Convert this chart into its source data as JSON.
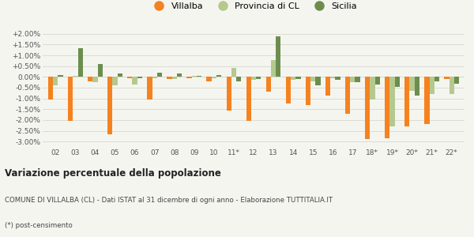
{
  "categories": [
    "02",
    "03",
    "04",
    "05",
    "06",
    "07",
    "08",
    "09",
    "10",
    "11*",
    "12",
    "13",
    "14",
    "15",
    "16",
    "17",
    "18*",
    "19*",
    "20*",
    "21*",
    "22*"
  ],
  "villalba": [
    -1.05,
    -2.05,
    -0.2,
    -2.65,
    -0.05,
    -1.05,
    -0.1,
    -0.05,
    -0.2,
    -1.55,
    -2.05,
    -0.7,
    -1.25,
    -1.3,
    -0.85,
    -1.7,
    -2.9,
    -2.85,
    -2.3,
    -2.2,
    -0.1
  ],
  "provincia_cl": [
    -0.4,
    0.05,
    -0.25,
    -0.4,
    -0.35,
    -0.05,
    -0.1,
    0.05,
    -0.05,
    0.4,
    -0.15,
    0.8,
    -0.15,
    -0.2,
    -0.05,
    -0.25,
    -1.05,
    -2.3,
    -0.65,
    -0.8,
    -0.8
  ],
  "sicilia": [
    0.1,
    1.35,
    0.6,
    0.15,
    -0.05,
    0.2,
    0.15,
    0.05,
    0.1,
    -0.2,
    -0.1,
    1.9,
    -0.1,
    -0.4,
    -0.15,
    -0.25,
    -0.35,
    -0.45,
    -0.85,
    -0.2,
    -0.3
  ],
  "villalba_color": "#f5821f",
  "provincia_cl_color": "#b5c98e",
  "sicilia_color": "#6b8e4e",
  "title": "Variazione percentuale della popolazione",
  "subtitle": "COMUNE DI VILLALBA (CL) - Dati ISTAT al 31 dicembre di ogni anno - Elaborazione TUTTITALIA.IT",
  "footnote": "(*) post-censimento",
  "ylim": [
    -3.25,
    2.25
  ],
  "yticks": [
    -3.0,
    -2.5,
    -2.0,
    -1.5,
    -1.0,
    -0.5,
    0.0,
    0.5,
    1.0,
    1.5,
    2.0
  ],
  "ytick_labels": [
    "-3.00%",
    "-2.50%",
    "-2.00%",
    "-1.50%",
    "-1.00%",
    "-0.50%",
    "0.00%",
    "+0.50%",
    "+1.00%",
    "+1.50%",
    "+2.00%"
  ],
  "bg_color": "#f5f5f0",
  "grid_color": "#d8d8d0"
}
